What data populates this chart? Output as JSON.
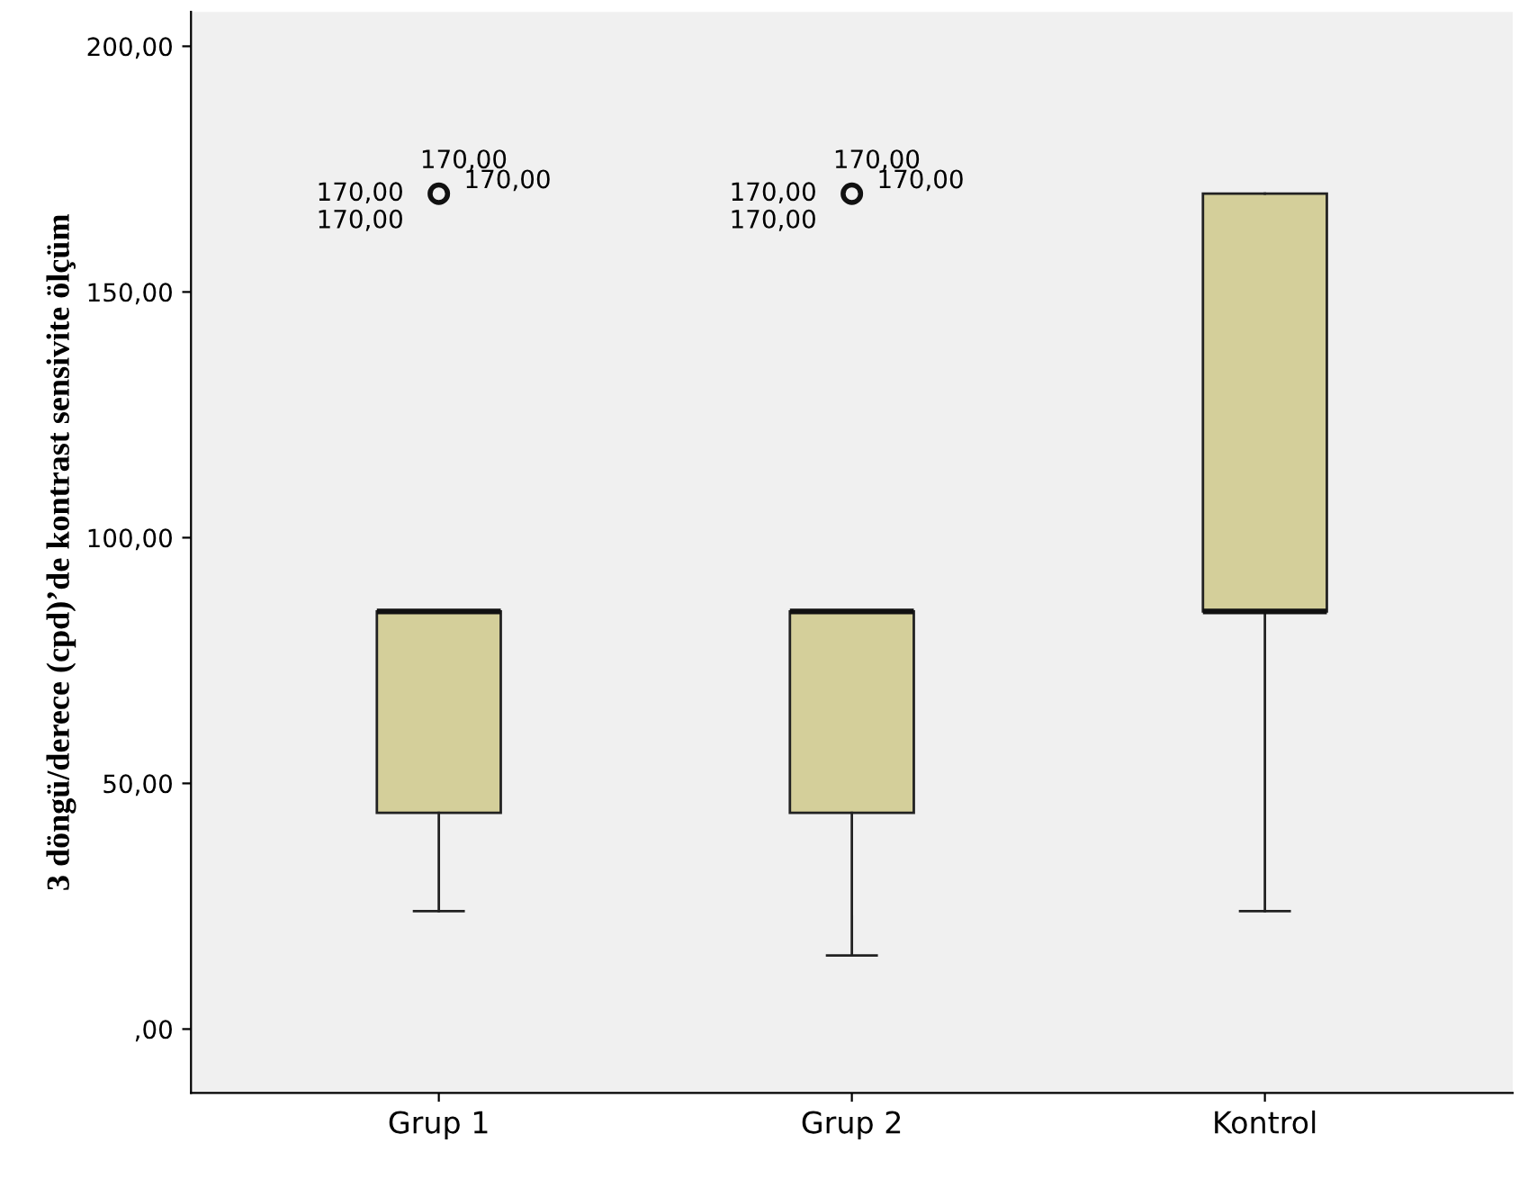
{
  "chart_data": {
    "type": "box",
    "ylabel": "3 döngü/derece (cpd)’de kontrast sensivite ölçüm",
    "categories": [
      "Grup 1",
      "Grup 2",
      "Kontrol"
    ],
    "color": "#d4cf9a",
    "boxes": [
      {
        "low": 24,
        "q1": 44,
        "median": 85,
        "q3": 85,
        "high": 85,
        "outliers": [
          170
        ]
      },
      {
        "low": 15,
        "q1": 44,
        "median": 85,
        "q3": 85,
        "high": 85,
        "outliers": [
          170
        ]
      },
      {
        "low": 24,
        "q1": 85,
        "median": 85,
        "q3": 170,
        "high": 170
      }
    ],
    "ylim": [
      -13,
      207
    ],
    "yticks": [
      {
        "value": 0,
        "label": ",00"
      },
      {
        "value": 50,
        "label": "50,00"
      },
      {
        "value": 100,
        "label": "100,00"
      },
      {
        "value": 150,
        "label": "150,00"
      },
      {
        "value": 200,
        "label": "200,00"
      }
    ],
    "grid": false,
    "marker": "circle",
    "annotations": [
      "170,00",
      "170,00",
      "170,00",
      "170,00",
      "170,00",
      "170,00",
      "170,00",
      "170,00"
    ]
  }
}
